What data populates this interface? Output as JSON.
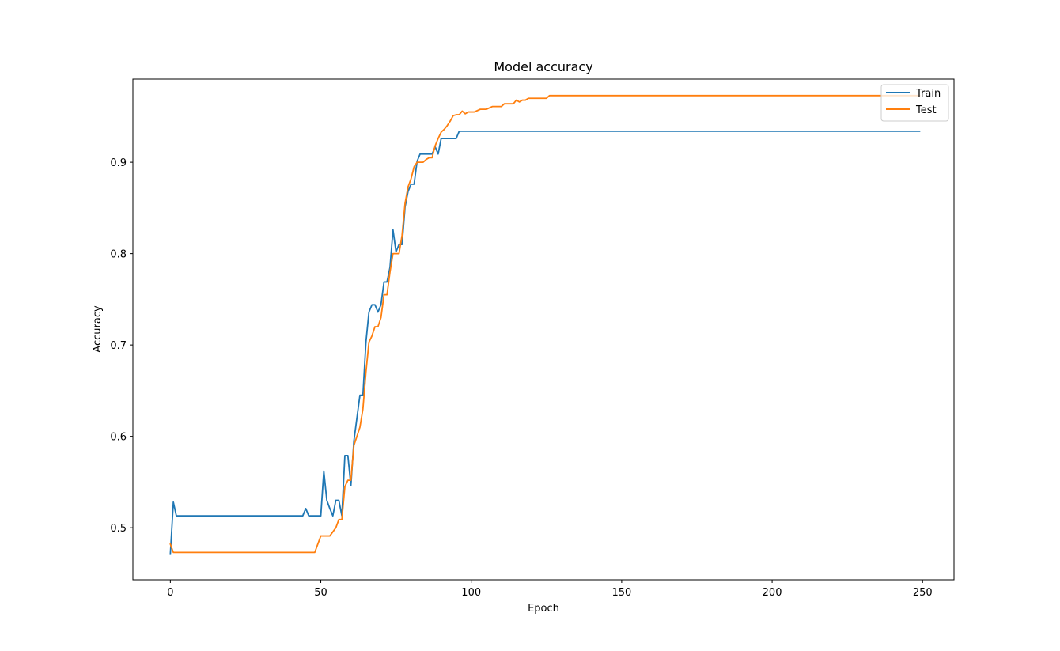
{
  "chart_data": {
    "type": "line",
    "title": "Model accuracy",
    "xlabel": "Epoch",
    "ylabel": "Accuracy",
    "xlim": [
      -12.45,
      260.45
    ],
    "ylim": [
      0.443,
      0.991
    ],
    "xticks": [
      0,
      50,
      100,
      150,
      200,
      250
    ],
    "yticks": [
      0.5,
      0.6,
      0.7,
      0.8,
      0.9
    ],
    "grid": false,
    "legend_position": "upper right",
    "series": [
      {
        "name": "Train",
        "color": "#1f77b4",
        "points": [
          [
            0,
            0.471
          ],
          [
            1,
            0.528
          ],
          [
            2,
            0.513
          ],
          [
            44,
            0.513
          ],
          [
            45,
            0.521
          ],
          [
            46,
            0.513
          ],
          [
            50,
            0.513
          ],
          [
            51,
            0.562
          ],
          [
            52,
            0.53
          ],
          [
            53,
            0.521
          ],
          [
            54,
            0.513
          ],
          [
            55,
            0.53
          ],
          [
            56,
            0.53
          ],
          [
            57,
            0.513
          ],
          [
            58,
            0.579
          ],
          [
            59,
            0.579
          ],
          [
            60,
            0.546
          ],
          [
            61,
            0.595
          ],
          [
            62,
            0.62
          ],
          [
            63,
            0.645
          ],
          [
            64,
            0.645
          ],
          [
            65,
            0.703
          ],
          [
            66,
            0.736
          ],
          [
            67,
            0.744
          ],
          [
            68,
            0.744
          ],
          [
            69,
            0.736
          ],
          [
            70,
            0.744
          ],
          [
            71,
            0.769
          ],
          [
            72,
            0.769
          ],
          [
            73,
            0.785
          ],
          [
            74,
            0.826
          ],
          [
            75,
            0.802
          ],
          [
            76,
            0.81
          ],
          [
            77,
            0.81
          ],
          [
            78,
            0.851
          ],
          [
            79,
            0.868
          ],
          [
            80,
            0.876
          ],
          [
            81,
            0.876
          ],
          [
            82,
            0.901
          ],
          [
            83,
            0.909
          ],
          [
            87,
            0.909
          ],
          [
            88,
            0.917
          ],
          [
            89,
            0.909
          ],
          [
            90,
            0.926
          ],
          [
            95,
            0.926
          ],
          [
            96,
            0.934
          ],
          [
            249,
            0.934
          ]
        ]
      },
      {
        "name": "Test",
        "color": "#ff7f0e",
        "points": [
          [
            0,
            0.482
          ],
          [
            1,
            0.473
          ],
          [
            48,
            0.473
          ],
          [
            49,
            0.482
          ],
          [
            50,
            0.491
          ],
          [
            53,
            0.491
          ],
          [
            55,
            0.5
          ],
          [
            56,
            0.509
          ],
          [
            57,
            0.509
          ],
          [
            58,
            0.545
          ],
          [
            59,
            0.552
          ],
          [
            60,
            0.552
          ],
          [
            61,
            0.59
          ],
          [
            62,
            0.6
          ],
          [
            63,
            0.61
          ],
          [
            64,
            0.63
          ],
          [
            65,
            0.67
          ],
          [
            66,
            0.703
          ],
          [
            67,
            0.71
          ],
          [
            68,
            0.72
          ],
          [
            69,
            0.72
          ],
          [
            70,
            0.73
          ],
          [
            71,
            0.755
          ],
          [
            72,
            0.755
          ],
          [
            73,
            0.78
          ],
          [
            74,
            0.8
          ],
          [
            76,
            0.8
          ],
          [
            77,
            0.82
          ],
          [
            78,
            0.855
          ],
          [
            79,
            0.873
          ],
          [
            80,
            0.882
          ],
          [
            81,
            0.895
          ],
          [
            82,
            0.9
          ],
          [
            84,
            0.9
          ],
          [
            85,
            0.903
          ],
          [
            86,
            0.905
          ],
          [
            87,
            0.905
          ],
          [
            88,
            0.918
          ],
          [
            89,
            0.926
          ],
          [
            90,
            0.933
          ],
          [
            91,
            0.936
          ],
          [
            92,
            0.94
          ],
          [
            93,
            0.945
          ],
          [
            94,
            0.951
          ],
          [
            95,
            0.952
          ],
          [
            96,
            0.952
          ],
          [
            97,
            0.956
          ],
          [
            98,
            0.953
          ],
          [
            99,
            0.955
          ],
          [
            101,
            0.955
          ],
          [
            103,
            0.958
          ],
          [
            105,
            0.958
          ],
          [
            107,
            0.961
          ],
          [
            110,
            0.961
          ],
          [
            111,
            0.964
          ],
          [
            114,
            0.964
          ],
          [
            115,
            0.968
          ],
          [
            116,
            0.966
          ],
          [
            117,
            0.968
          ],
          [
            118,
            0.968
          ],
          [
            119,
            0.97
          ],
          [
            125,
            0.97
          ],
          [
            126,
            0.973
          ],
          [
            240,
            0.973
          ],
          [
            249,
            0.973
          ]
        ]
      }
    ]
  }
}
